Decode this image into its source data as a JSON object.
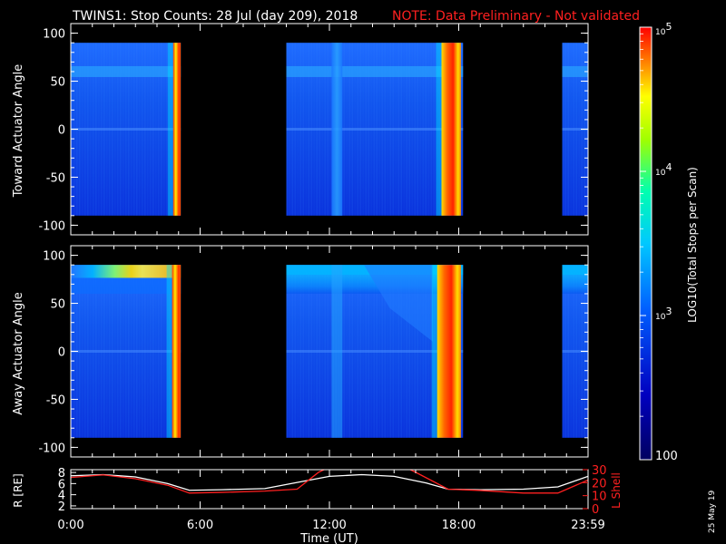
{
  "header": {
    "title": "TWINS1: Stop Counts: 28 Jul (day 209), 2018",
    "note": "NOTE: Data Preliminary - Not validated"
  },
  "colorbar": {
    "label": "LOG10(Total Stops per Scan)",
    "tick_labels": [
      "10^5",
      "10^4",
      "10^3",
      "100"
    ],
    "tick_values": [
      100000,
      10000,
      1000,
      100
    ],
    "range": [
      100,
      100000
    ],
    "scale": "log",
    "palette": "rainbow (dark blue to red)"
  },
  "xaxis": {
    "label": "Time (UT)",
    "tick_labels": [
      "0:00",
      "6:00",
      "12:00",
      "18:00",
      "23:59"
    ],
    "range_hours": [
      0,
      24
    ]
  },
  "date_stamp": "25 May 19",
  "chart_data": [
    {
      "type": "heatmap",
      "panel": "toward",
      "ylabel": "Toward Actuator Angle",
      "ylim": [
        -110,
        110
      ],
      "ytick_labels": [
        "100",
        "50",
        "0",
        "-50",
        "-100"
      ],
      "data_angle_range": [
        -90,
        90
      ],
      "data_segments_hours": [
        [
          0,
          5.1
        ],
        [
          10.0,
          18.2
        ],
        [
          22.8,
          24
        ]
      ],
      "background_level": "~700-900 (blue)",
      "bright_bands_hours": [
        {
          "start": 4.75,
          "end": 5.1,
          "level": "10^4-10^5 (yellow to red)"
        },
        {
          "start": 17.2,
          "end": 18.1,
          "level": "10^4-10^5 (yellow to red)"
        }
      ],
      "enhanced_band_hours": {
        "start": 12.1,
        "end": 12.6,
        "level": "~1500 (light blue)"
      },
      "enhanced_angle_band": {
        "angle": 60,
        "level": "~1500 (light blue)"
      }
    },
    {
      "type": "heatmap",
      "panel": "away",
      "ylabel": "Away Actuator Angle",
      "ylim": [
        -110,
        110
      ],
      "ytick_labels": [
        "100",
        "50",
        "0",
        "-50",
        "-100"
      ],
      "data_angle_range": [
        -90,
        90
      ],
      "data_segments_hours": [
        [
          0,
          5.1
        ],
        [
          10.0,
          18.2
        ],
        [
          22.8,
          24
        ]
      ],
      "background_level": "~600-800 (blue)",
      "bright_bands_hours": [
        {
          "start": 4.7,
          "end": 5.1,
          "level": "10^4-10^5 (yellow to red)"
        },
        {
          "start": 17.0,
          "end": 18.1,
          "level": "10^4-10^5 (yellow to red)"
        }
      ],
      "enhanced_angle_band": {
        "angle_min": 60,
        "angle_max": 90,
        "level": "~1500-3000 (cyan, yellow near 4:30)"
      }
    },
    {
      "type": "line",
      "panel": "orbit",
      "ylabel_left": "R [RE]",
      "ylabel_right": "L Shell",
      "ylim_left": [
        1.5,
        8.5
      ],
      "ylim_right": [
        0,
        30
      ],
      "ytick_labels_left": [
        "8",
        "6",
        "4",
        "2"
      ],
      "ytick_labels_right": [
        "30",
        "20",
        "10",
        "0"
      ],
      "series": [
        {
          "name": "R [RE]",
          "axis": "left",
          "color": "#ffffff",
          "x_hours": [
            0,
            1.5,
            3,
            4.5,
            5.5,
            7,
            9,
            10.5,
            12,
            13.5,
            15,
            16.5,
            17.5,
            19,
            21,
            22.6,
            24
          ],
          "y": [
            7.4,
            7.6,
            7.2,
            6.0,
            4.8,
            4.9,
            5.1,
            6.2,
            7.3,
            7.6,
            7.3,
            6.1,
            5.0,
            4.9,
            5.0,
            5.4,
            7.3
          ]
        },
        {
          "name": "L Shell",
          "axis": "right",
          "color": "#ff2020",
          "x_hours": [
            0,
            1.5,
            3,
            4.5,
            5.5,
            7,
            9,
            10.5,
            11.5,
            12,
            15.5,
            16,
            17.5,
            19,
            21,
            22.6,
            24
          ],
          "y": [
            24,
            26,
            23,
            18,
            12,
            12.5,
            13.5,
            15,
            28,
            32,
            32,
            28,
            15,
            14,
            12,
            12,
            22
          ]
        }
      ]
    }
  ]
}
